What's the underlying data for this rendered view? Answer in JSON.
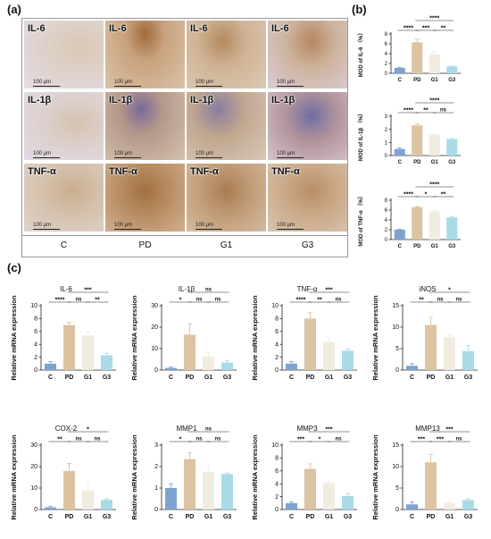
{
  "panels": {
    "a": "(a)",
    "b": "(b)",
    "c": "(c)"
  },
  "tiles": {
    "rows": [
      "IL-6",
      "IL-1β",
      "TNF-α"
    ],
    "scale_text": "100 μm",
    "groups": [
      "C",
      "PD",
      "G1",
      "G3"
    ]
  },
  "colors": {
    "C": "#7ea3d2",
    "PD": "#dcc4a2",
    "G1": "#f1ece0",
    "G3": "#a9dbe6"
  },
  "chart_data": [
    {
      "type": "bar",
      "panel": "b",
      "categories": [
        "C",
        "PD",
        "G1",
        "G3"
      ],
      "values": [
        1.1,
        6.3,
        3.9,
        1.4
      ],
      "errors": [
        0.1,
        0.6,
        0.4,
        0.1
      ],
      "title": "",
      "xlabel": "",
      "ylabel": "MOD of IL-6 （%）",
      "ylim": [
        0,
        8
      ],
      "yticks": [
        "0",
        "2",
        "4",
        "6",
        "8"
      ],
      "sig": [
        {
          "from": 0,
          "to": 1,
          "label": "****"
        },
        {
          "from": 1,
          "to": 2,
          "label": "***"
        },
        {
          "from": 2,
          "to": 3,
          "label": "**"
        },
        {
          "from": 1,
          "to": 3,
          "label": "****"
        }
      ]
    },
    {
      "type": "bar",
      "panel": "b",
      "categories": [
        "C",
        "PD",
        "G1",
        "G3"
      ],
      "values": [
        0.5,
        2.3,
        1.6,
        1.25
      ],
      "errors": [
        0.08,
        0.1,
        0.08,
        0.06
      ],
      "title": "",
      "xlabel": "",
      "ylabel": "MOD of IL-1β （%）",
      "ylim": [
        0,
        3
      ],
      "yticks": [
        "0",
        "1",
        "2",
        "3"
      ],
      "sig": [
        {
          "from": 0,
          "to": 1,
          "label": "****"
        },
        {
          "from": 1,
          "to": 2,
          "label": "**"
        },
        {
          "from": 2,
          "to": 3,
          "label": "ns"
        },
        {
          "from": 1,
          "to": 3,
          "label": "****"
        }
      ]
    },
    {
      "type": "bar",
      "panel": "b",
      "categories": [
        "C",
        "PD",
        "G1",
        "G3"
      ],
      "values": [
        2.0,
        6.6,
        5.7,
        4.5
      ],
      "errors": [
        0.1,
        0.15,
        0.3,
        0.2
      ],
      "title": "",
      "xlabel": "",
      "ylabel": "MOD of TNF-α （%）",
      "ylim": [
        0,
        8
      ],
      "yticks": [
        "0",
        "2",
        "4",
        "6",
        "8"
      ],
      "sig": [
        {
          "from": 0,
          "to": 1,
          "label": "****"
        },
        {
          "from": 1,
          "to": 2,
          "label": "*"
        },
        {
          "from": 2,
          "to": 3,
          "label": "**"
        },
        {
          "from": 1,
          "to": 3,
          "label": "****"
        }
      ]
    },
    {
      "type": "bar",
      "panel": "c",
      "categories": [
        "C",
        "PD",
        "G1",
        "G3"
      ],
      "values": [
        1.0,
        7.0,
        5.4,
        2.3
      ],
      "errors": [
        0.3,
        0.4,
        0.5,
        0.3
      ],
      "title": "IL-6",
      "xlabel": "",
      "ylabel": "Relative mRNA expression",
      "ylim": [
        0,
        10
      ],
      "yticks": [
        "0",
        "2",
        "4",
        "6",
        "8",
        "10"
      ],
      "sig": [
        {
          "from": 0,
          "to": 1,
          "label": "****"
        },
        {
          "from": 1,
          "to": 2,
          "label": "ns"
        },
        {
          "from": 2,
          "to": 3,
          "label": "**"
        },
        {
          "from": 1,
          "to": 3,
          "label": "***"
        }
      ]
    },
    {
      "type": "bar",
      "panel": "c",
      "categories": [
        "C",
        "PD",
        "G1",
        "G3"
      ],
      "values": [
        1.0,
        16.5,
        6.2,
        3.5
      ],
      "errors": [
        0.4,
        5.0,
        2.0,
        1.0
      ],
      "title": "IL-1β",
      "xlabel": "",
      "ylabel": "Relative mRNA expression",
      "ylim": [
        0,
        30
      ],
      "yticks": [
        "0",
        "10",
        "20",
        "30"
      ],
      "sig": [
        {
          "from": 0,
          "to": 1,
          "label": "*"
        },
        {
          "from": 1,
          "to": 2,
          "label": "ns"
        },
        {
          "from": 2,
          "to": 3,
          "label": "ns"
        },
        {
          "from": 1,
          "to": 3,
          "label": "ns"
        }
      ]
    },
    {
      "type": "bar",
      "panel": "c",
      "categories": [
        "C",
        "PD",
        "G1",
        "G3"
      ],
      "values": [
        1.0,
        8.0,
        4.4,
        3.0
      ],
      "errors": [
        0.3,
        0.9,
        0.5,
        0.3
      ],
      "title": "TNF-α",
      "xlabel": "",
      "ylabel": "Relative mRNA expression",
      "ylim": [
        0,
        10
      ],
      "yticks": [
        "0",
        "2",
        "4",
        "6",
        "8",
        "10"
      ],
      "sig": [
        {
          "from": 0,
          "to": 1,
          "label": "****"
        },
        {
          "from": 1,
          "to": 2,
          "label": "**"
        },
        {
          "from": 2,
          "to": 3,
          "label": "ns"
        },
        {
          "from": 1,
          "to": 3,
          "label": "***"
        }
      ]
    },
    {
      "type": "bar",
      "panel": "c",
      "categories": [
        "C",
        "PD",
        "G1",
        "G3"
      ],
      "values": [
        1.0,
        10.5,
        7.6,
        4.4
      ],
      "errors": [
        0.5,
        1.8,
        0.5,
        1.3
      ],
      "title": "iNOS",
      "xlabel": "",
      "ylabel": "Relative mRNA expression",
      "ylim": [
        0,
        15
      ],
      "yticks": [
        "0",
        "5",
        "10",
        "15"
      ],
      "sig": [
        {
          "from": 0,
          "to": 1,
          "label": "**"
        },
        {
          "from": 1,
          "to": 2,
          "label": "ns"
        },
        {
          "from": 2,
          "to": 3,
          "label": "ns"
        },
        {
          "from": 1,
          "to": 3,
          "label": "*"
        }
      ]
    },
    {
      "type": "bar",
      "panel": "c",
      "categories": [
        "C",
        "PD",
        "G1",
        "G3"
      ],
      "values": [
        1.0,
        18.0,
        9.0,
        4.5
      ],
      "errors": [
        0.5,
        3.5,
        3.0,
        0.5
      ],
      "title": "COX-2",
      "xlabel": "",
      "ylabel": "Relative mRNA expression",
      "ylim": [
        0,
        30
      ],
      "yticks": [
        "0",
        "10",
        "20",
        "30"
      ],
      "sig": [
        {
          "from": 0,
          "to": 1,
          "label": "**"
        },
        {
          "from": 1,
          "to": 2,
          "label": "ns"
        },
        {
          "from": 2,
          "to": 3,
          "label": "ns"
        },
        {
          "from": 1,
          "to": 3,
          "label": "*"
        }
      ]
    },
    {
      "type": "bar",
      "panel": "c",
      "categories": [
        "C",
        "PD",
        "G1",
        "G3"
      ],
      "values": [
        1.0,
        2.35,
        1.75,
        1.65
      ],
      "errors": [
        0.2,
        0.3,
        0.25,
        0.05
      ],
      "title": "MMP1",
      "xlabel": "",
      "ylabel": "Relative mRNA expression",
      "ylim": [
        0,
        3
      ],
      "yticks": [
        "0",
        "1",
        "2",
        "3"
      ],
      "sig": [
        {
          "from": 0,
          "to": 1,
          "label": "*"
        },
        {
          "from": 1,
          "to": 2,
          "label": "ns"
        },
        {
          "from": 2,
          "to": 3,
          "label": "ns"
        },
        {
          "from": 1,
          "to": 3,
          "label": "ns"
        }
      ]
    },
    {
      "type": "bar",
      "panel": "c",
      "categories": [
        "C",
        "PD",
        "G1",
        "G3"
      ],
      "values": [
        1.0,
        6.3,
        4.1,
        2.1
      ],
      "errors": [
        0.2,
        0.8,
        0.3,
        0.4
      ],
      "title": "MMP3",
      "xlabel": "",
      "ylabel": "Relative mRNA expression",
      "ylim": [
        0,
        10
      ],
      "yticks": [
        "0",
        "2",
        "4",
        "6",
        "8",
        "10"
      ],
      "sig": [
        {
          "from": 0,
          "to": 1,
          "label": "***"
        },
        {
          "from": 1,
          "to": 2,
          "label": "*"
        },
        {
          "from": 2,
          "to": 3,
          "label": "ns"
        },
        {
          "from": 1,
          "to": 3,
          "label": "***"
        }
      ]
    },
    {
      "type": "bar",
      "panel": "c",
      "categories": [
        "C",
        "PD",
        "G1",
        "G3"
      ],
      "values": [
        1.2,
        11.0,
        1.5,
        2.2
      ],
      "errors": [
        0.6,
        1.8,
        0.2,
        0.3
      ],
      "title": "MMP13",
      "xlabel": "",
      "ylabel": "Relative mRNA expression",
      "ylim": [
        0,
        15
      ],
      "yticks": [
        "0",
        "5",
        "10",
        "15"
      ],
      "sig": [
        {
          "from": 0,
          "to": 1,
          "label": "***"
        },
        {
          "from": 1,
          "to": 2,
          "label": "***"
        },
        {
          "from": 2,
          "to": 3,
          "label": "ns"
        },
        {
          "from": 1,
          "to": 3,
          "label": "***"
        }
      ]
    }
  ]
}
